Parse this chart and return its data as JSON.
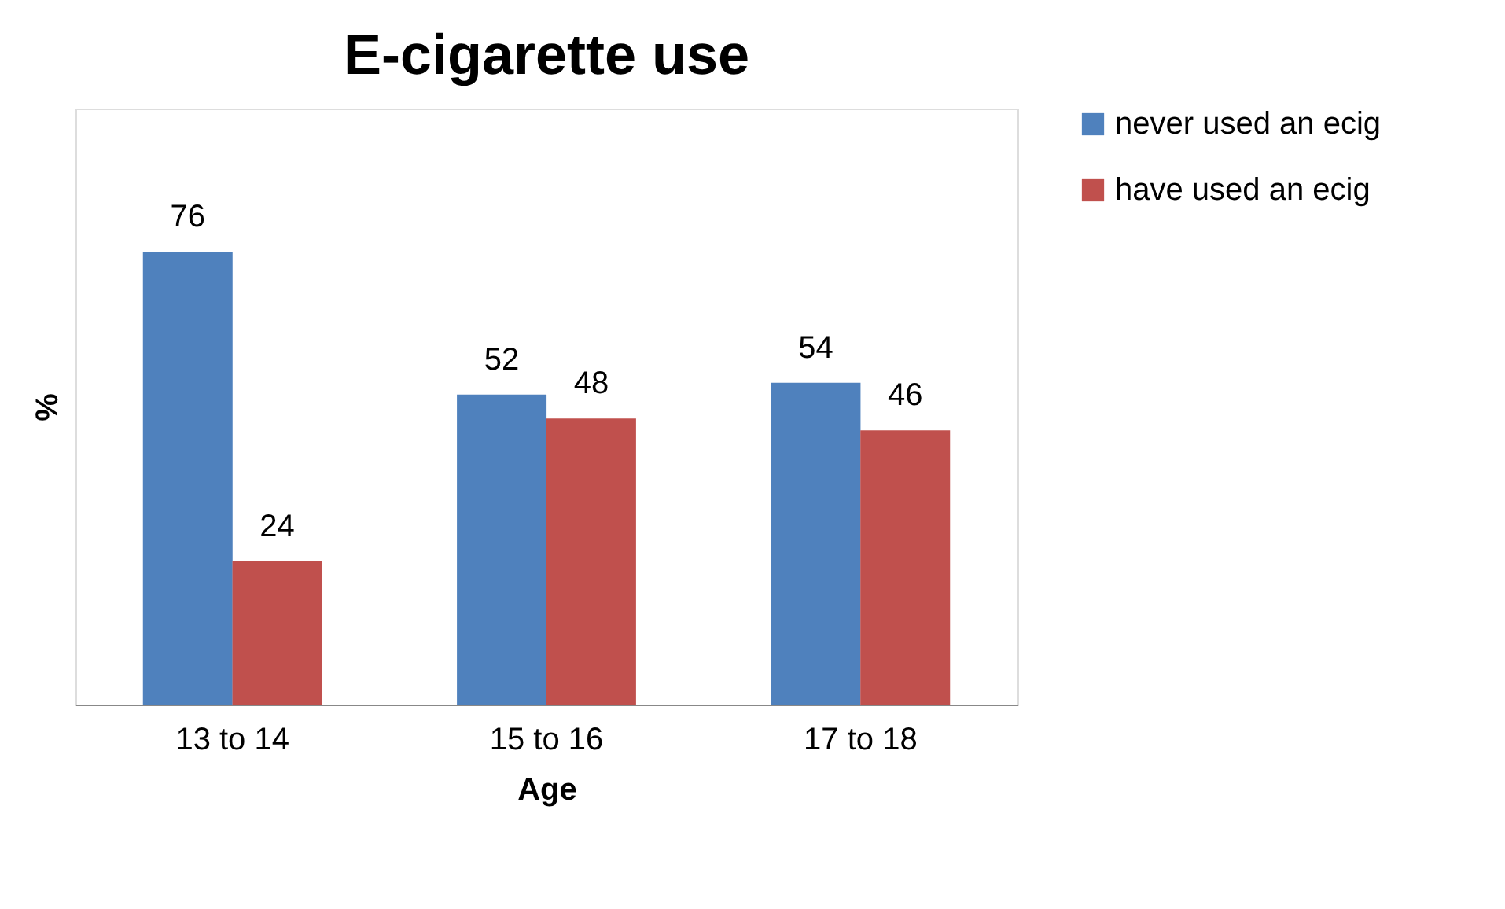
{
  "chart_data": {
    "type": "bar",
    "title": "E-cigarette use",
    "xlabel": "Age",
    "ylabel": "%",
    "categories": [
      "13 to 14",
      "15 to 16",
      "17 to 18"
    ],
    "series": [
      {
        "name": "never used an ecig",
        "color": "#4f81bd",
        "values": [
          76,
          52,
          54
        ]
      },
      {
        "name": "have used an ecig",
        "color": "#c0504d",
        "values": [
          24,
          48,
          46
        ]
      }
    ],
    "ylim": [
      0,
      100
    ],
    "data_labels": true,
    "legend": "right",
    "grid": false,
    "tick_labels": "x"
  }
}
